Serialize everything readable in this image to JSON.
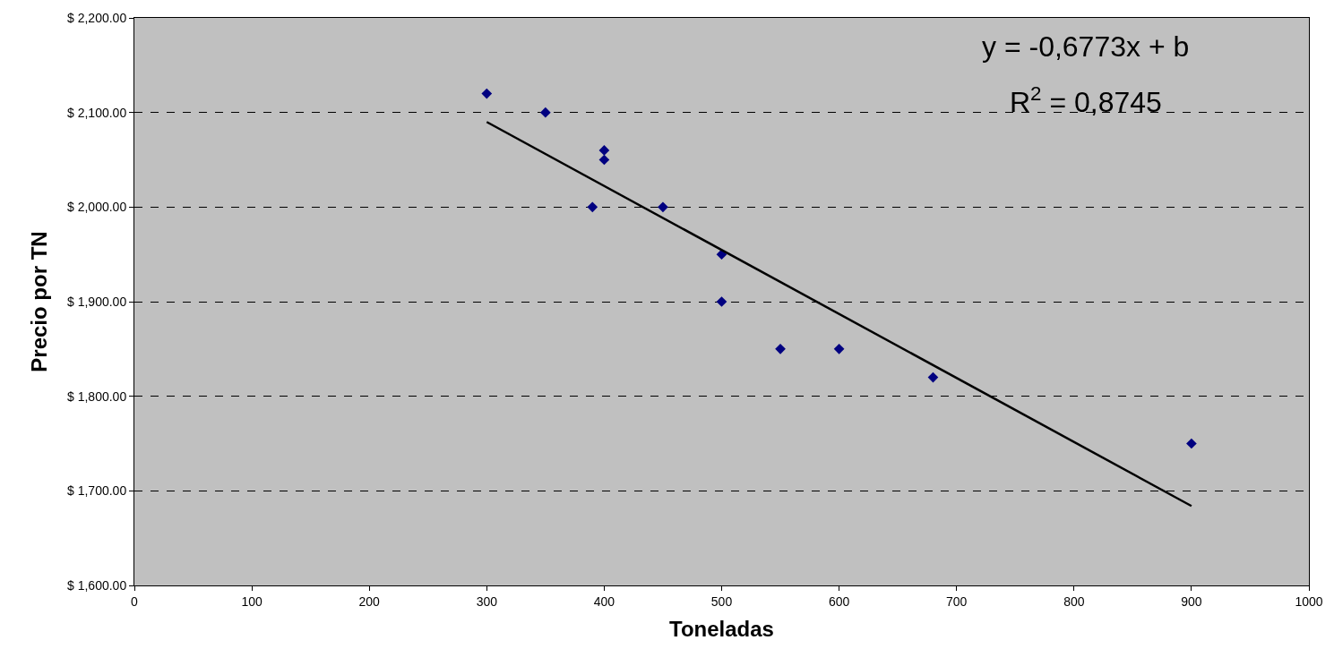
{
  "chart_data": {
    "type": "scatter",
    "xlabel": "Toneladas",
    "ylabel": "Precio por TN",
    "xlim": [
      0,
      1000
    ],
    "xticks": [
      0,
      100,
      200,
      300,
      400,
      500,
      600,
      700,
      800,
      900,
      1000
    ],
    "ylim": [
      1600,
      2200
    ],
    "yticks": [
      {
        "value": 1600,
        "label": "$ 1,600.00"
      },
      {
        "value": 1700,
        "label": "$ 1,700.00"
      },
      {
        "value": 1800,
        "label": "$ 1,800.00"
      },
      {
        "value": 1900,
        "label": "$ 1,900.00"
      },
      {
        "value": 2000,
        "label": "$ 2,000.00"
      },
      {
        "value": 2100,
        "label": "$ 2,100.00"
      },
      {
        "value": 2200,
        "label": "$ 2,200.00"
      }
    ],
    "grid": "y",
    "series": [
      {
        "color": "#000080",
        "marker": "diamond",
        "x": [
          300,
          350,
          400,
          400,
          390,
          450,
          500,
          500,
          550,
          600,
          680,
          900
        ],
        "values": [
          2120,
          2100,
          2060,
          2050,
          2000,
          2000,
          1950,
          1900,
          1850,
          1850,
          1820,
          1750
        ]
      },
      {
        "type": "line",
        "color": "#000000",
        "marker": "none",
        "line_style": "solid",
        "x": [
          300,
          900
        ],
        "values": [
          2090,
          1684
        ]
      }
    ],
    "annotations": [
      "y = -0,6773x + b",
      "R$^{2}$ = 0,8745"
    ]
  }
}
